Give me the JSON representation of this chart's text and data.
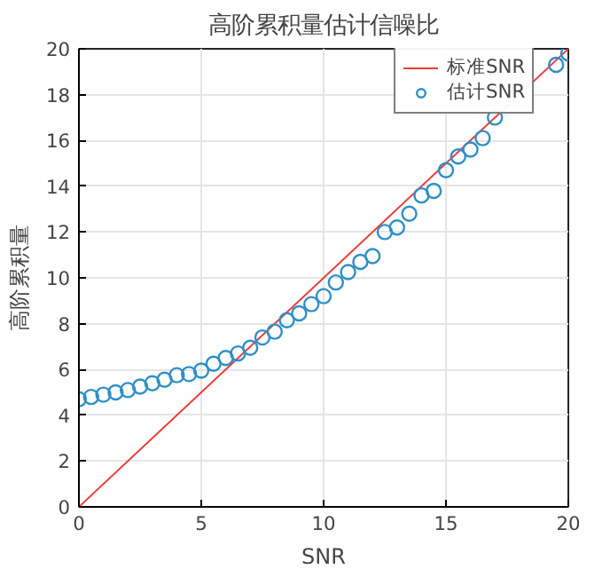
{
  "chart_data": {
    "type": "line",
    "title": "高阶累积量估计信噪比",
    "xlabel": "SNR",
    "ylabel": "高阶累积量",
    "xlim": [
      0,
      20
    ],
    "ylim": [
      0,
      20
    ],
    "xticks": [
      0,
      5,
      10,
      15,
      20
    ],
    "yticks": [
      0,
      2,
      4,
      6,
      8,
      10,
      12,
      14,
      16,
      18,
      20
    ],
    "grid": true,
    "legend": "top right",
    "series": [
      {
        "name": "标准SNR",
        "color": "#e8403a",
        "marker": "none",
        "line_style": "solid",
        "x": [
          0,
          20
        ],
        "values": [
          0,
          20
        ]
      },
      {
        "name": "估计SNR",
        "type": "scatter",
        "color": "#2e8fc6",
        "marker": "circle",
        "x": [
          0,
          0.5,
          1,
          1.5,
          2,
          2.5,
          3,
          3.5,
          4,
          4.5,
          5,
          5.5,
          6,
          6.5,
          7,
          7.5,
          8,
          8.5,
          9,
          9.5,
          10,
          10.5,
          11,
          11.5,
          12,
          12.5,
          13,
          13.5,
          14,
          14.5,
          15,
          15.5,
          16,
          16.5,
          17,
          17.5,
          18,
          18.5,
          19,
          19.5,
          20
        ],
        "values": [
          4.7,
          4.8,
          4.9,
          5.0,
          5.1,
          5.25,
          5.4,
          5.55,
          5.75,
          5.8,
          5.95,
          6.25,
          6.5,
          6.7,
          6.95,
          7.4,
          7.65,
          8.15,
          8.45,
          8.85,
          9.2,
          9.8,
          10.25,
          10.7,
          10.95,
          12.0,
          12.2,
          12.8,
          13.6,
          13.8,
          14.7,
          15.3,
          15.6,
          16.1,
          17.0,
          null,
          null,
          null,
          null,
          19.3,
          19.8
        ]
      }
    ]
  }
}
